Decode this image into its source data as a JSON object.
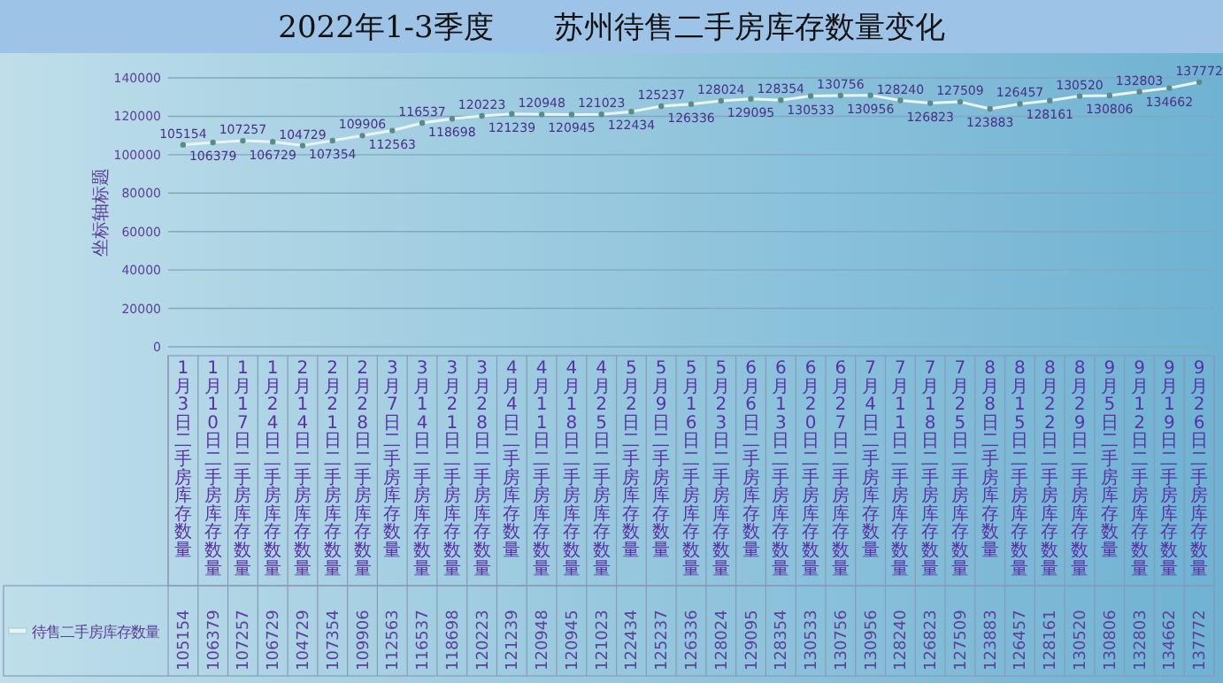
{
  "chart_data": [
    {
      "type": "line",
      "title": "2022年1-3季度　　苏州待售二手房库存数量变化",
      "ylabel": "坐标轴标题",
      "categories": [
        "1月3日二手房库存数量",
        "1月10日二手房库存数量",
        "1月17日二手房库存数量",
        "1月24日二手房库存数量",
        "2月14日二手房库存数量",
        "2月21日二手房库存数量",
        "2月28日二手房库存数量",
        "3月7日二手房库存数量",
        "3月14日二手房库存数量",
        "3月21日二手房库存数量",
        "3月28日二手房库存数量",
        "4月4日二手房库存数量",
        "4月11日二手房库存数量",
        "4月18日二手房库存数量",
        "4月25日二手房库存数量",
        "5月2日二手房库存数量",
        "5月9日二手房库存数量",
        "5月16日二手房库存数量",
        "5月23日二手房库存数量",
        "6月6日二手房库存数量",
        "6月13日二手房库存数量",
        "6月20日二手房库存数量",
        "6月27日二手房库存数量",
        "7月4日二手房库存数量",
        "7月11日二手房库存数量",
        "7月18日二手房库存数量",
        "7月25日二手房库存数量",
        "8月8日二手房库存数量",
        "8月15日二手房库存数量",
        "8月22日二手房库存数量",
        "8月29日二手房库存数量",
        "9月5日二手房库存数量",
        "9月12日二手房库存数量",
        "9月19日二手房库存数量",
        "9月26日二手房库存数量"
      ],
      "series": [
        {
          "color": "#e8f4f8",
          "values": [
            105154,
            106379,
            107257,
            106729,
            104729,
            107354,
            109906,
            112563,
            116537,
            118698,
            120223,
            121239,
            120948,
            120945,
            121023,
            122434,
            125237,
            126336,
            128024,
            129095,
            128354,
            130533,
            130756,
            130956,
            128240,
            126823,
            127509,
            123883,
            126457,
            128161,
            130520,
            130806,
            132803,
            134662,
            137772
          ],
          "value_labels": [
            "105154",
            "106379",
            "107257",
            "106729",
            "104729",
            "107354",
            "109906",
            "112563",
            "116537",
            "118698",
            "120223",
            "121239",
            "120948",
            "120945",
            "121023",
            "122434",
            "125237",
            "126336",
            "128024",
            "129095",
            "128354",
            "130533",
            "130756",
            "130956",
            "128240",
            "126823",
            "127509",
            "123883",
            "126457",
            "128161",
            "130520",
            "130806",
            "132803",
            "134662",
            "137772"
          ]
        }
      ],
      "ylim": [
        0,
        140000
      ],
      "yticks": [
        0,
        20000,
        40000,
        60000,
        80000,
        100000,
        120000,
        140000
      ],
      "grid": "y",
      "marker": "circle",
      "line_style": "solid"
    },
    {
      "type": "other",
      "legend": "bottom left",
      "data_labels": true,
      "series": [
        {
          "name": "待售二手房库存数量",
          "color": "#e8f4f8",
          "values": [
            105154,
            106379,
            107257,
            106729,
            104729,
            107354,
            109906,
            112563,
            116537,
            118698,
            120223,
            121239,
            120948,
            120945,
            121023,
            122434,
            125237,
            126336,
            128024,
            129095,
            128354,
            130533,
            130756,
            130956,
            128240,
            126823,
            127509,
            123883,
            126457,
            128161,
            130520,
            130806,
            132803,
            134662,
            137772
          ]
        }
      ]
    }
  ]
}
